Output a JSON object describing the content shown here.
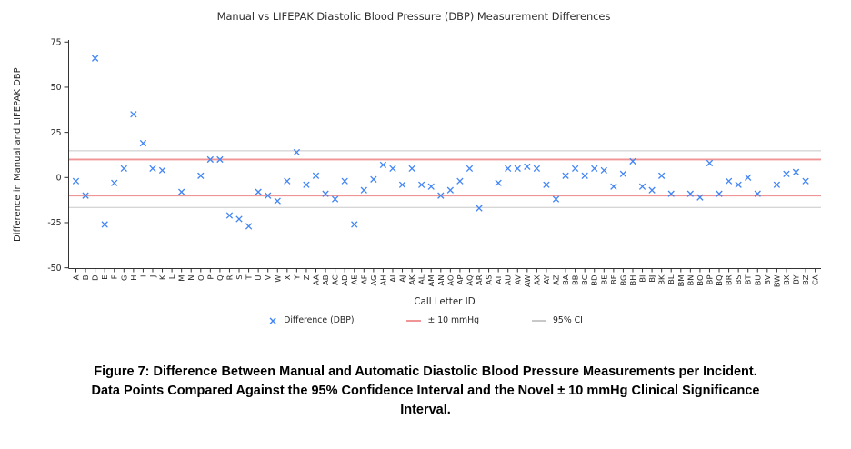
{
  "figure": {
    "caption": "Figure 7: Difference Between Manual and Automatic Diastolic Blood Pressure Measurements per Incident. Data Points Compared Against the 95% Confidence Interval and the Novel ± 10 mmHg Clinical Significance Interval."
  },
  "chart_data": {
    "type": "scatter",
    "marker": "x",
    "title": "Manual vs LIFEPAK Diastolic Blood Pressure (DBP) Measurement Differences",
    "xlabel": "Call Letter ID",
    "ylabel": "Difference in Manual and LIFEPAK DBP",
    "ylim": [
      -50,
      75
    ],
    "yticks": [
      75,
      50,
      25,
      0,
      -25,
      -50
    ],
    "grid": false,
    "legend_position": "bottom",
    "series_color": "#4285f4",
    "ref_color": "#f09595",
    "ci_color": "#c8c8c8",
    "axis_color": "#333333",
    "categories": [
      "A",
      "B",
      "D",
      "E",
      "F",
      "G",
      "H",
      "I",
      "J",
      "K",
      "L",
      "M",
      "N",
      "O",
      "P",
      "Q",
      "R",
      "S",
      "T",
      "U",
      "V",
      "W",
      "X",
      "Y",
      "Z",
      "AA",
      "AB",
      "AC",
      "AD",
      "AE",
      "AF",
      "AG",
      "AH",
      "AI",
      "AJ",
      "AK",
      "AL",
      "AM",
      "AN",
      "AO",
      "AP",
      "AQ",
      "AR",
      "AS",
      "AT",
      "AU",
      "AV",
      "AW",
      "AX",
      "AY",
      "AZ",
      "BA",
      "BB",
      "BC",
      "BD",
      "BE",
      "BF",
      "BG",
      "BH",
      "BI",
      "BJ",
      "BK",
      "BL",
      "BM",
      "BN",
      "BO",
      "BP",
      "BQ",
      "BR",
      "BS",
      "BT",
      "BU",
      "BV",
      "BW",
      "BX",
      "BY",
      "BZ",
      "CA"
    ],
    "values": [
      -2,
      -10,
      66,
      -26,
      -3,
      5,
      35,
      19,
      5,
      4,
      null,
      -8,
      null,
      1,
      10,
      10,
      -21,
      -23,
      -27,
      -8,
      -10,
      -13,
      -2,
      14,
      -4,
      1,
      -9,
      -12,
      -2,
      -26,
      -7,
      -1,
      7,
      5,
      -4,
      5,
      -4,
      -5,
      -10,
      -7,
      -2,
      5,
      -17,
      null,
      -3,
      5,
      5,
      6,
      5,
      -4,
      -12,
      1,
      5,
      1,
      5,
      4,
      -5,
      2,
      9,
      -5,
      -7,
      1,
      -9,
      null,
      -9,
      -11,
      8,
      -9,
      -2,
      -4,
      0,
      -9,
      null,
      -4,
      2,
      3,
      -2,
      null
    ],
    "reference_lines": {
      "plus_minus_10": [
        10,
        -10
      ],
      "ci_95": [
        14.8,
        -16.6
      ]
    },
    "legend": [
      {
        "label": "Difference (DBP)",
        "swatch": "x-marker",
        "color": "#4285f4"
      },
      {
        "label": "± 10 mmHg",
        "swatch": "line",
        "color": "#f09595"
      },
      {
        "label": "95% CI",
        "swatch": "line",
        "color": "#c8c8c8"
      }
    ]
  }
}
